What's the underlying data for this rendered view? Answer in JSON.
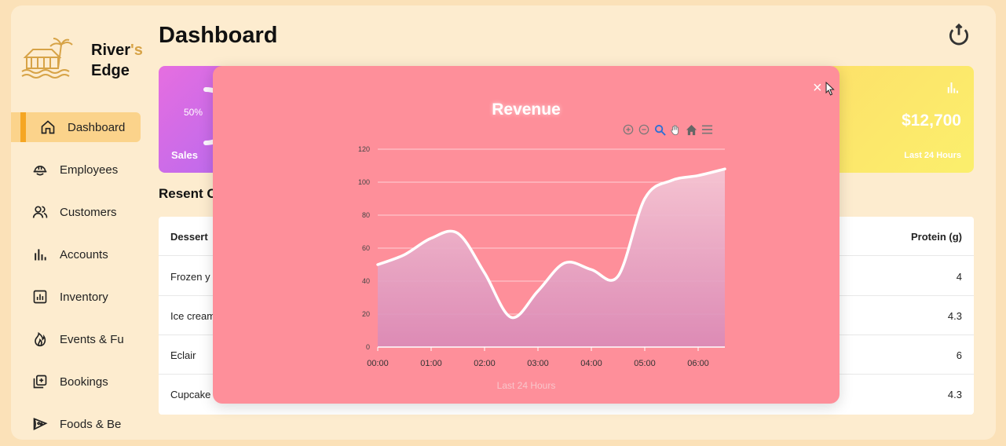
{
  "brand": {
    "name_a": "River",
    "name_accent": "'s",
    "name_b": "Edge"
  },
  "sidebar": {
    "items": [
      {
        "label": "Dashboard",
        "icon": "home-icon",
        "active": true
      },
      {
        "label": "Employees",
        "icon": "helmet-icon"
      },
      {
        "label": "Customers",
        "icon": "users-icon"
      },
      {
        "label": "Accounts",
        "icon": "bar-chart-icon"
      },
      {
        "label": "Inventory",
        "icon": "chart-box-icon"
      },
      {
        "label": "Events & Fu",
        "icon": "flame-icon"
      },
      {
        "label": "Bookings",
        "icon": "bookings-icon"
      },
      {
        "label": "Foods & Be",
        "icon": "pizza-icon"
      }
    ]
  },
  "header": {
    "title": "Dashboard",
    "power_icon": "power-icon"
  },
  "cards": {
    "sales": {
      "percent": "50%",
      "label": "Sales"
    },
    "revenue": {
      "amount": "$12,700",
      "sub": "Last 24 Hours"
    }
  },
  "section": {
    "title": "Resent C"
  },
  "table": {
    "headers": [
      "Dessert",
      "Protein (g)"
    ],
    "rows": [
      [
        "Frozen y",
        "4"
      ],
      [
        "Ice cream",
        "4.3"
      ],
      [
        "Eclair",
        "6"
      ],
      [
        "Cupcake",
        "4.3"
      ]
    ]
  },
  "modal": {
    "title": "Revenue",
    "footer": "Last 24 Hours",
    "close": "×"
  },
  "colors": {
    "accent": "#f5a623",
    "modal": "#fe8f9a",
    "line": "#ffffff"
  },
  "chart_data": {
    "type": "area",
    "title": "Revenue",
    "xlabel": "",
    "ylabel": "",
    "x": [
      "00:00",
      "00:30",
      "01:00",
      "01:30",
      "02:00",
      "02:30",
      "03:00",
      "03:30",
      "04:00",
      "04:30",
      "05:00",
      "05:30",
      "06:00",
      "06:30"
    ],
    "x_ticks": [
      "00:00",
      "01:00",
      "02:00",
      "03:00",
      "04:00",
      "05:00",
      "06:00"
    ],
    "values": [
      50,
      56,
      66,
      69,
      45,
      18,
      34,
      51,
      47,
      43,
      90,
      101,
      104,
      108
    ],
    "ylim": [
      0,
      120
    ],
    "y_ticks": [
      0,
      20,
      40,
      60,
      80,
      100,
      120
    ],
    "grid": true,
    "legend": "none"
  }
}
